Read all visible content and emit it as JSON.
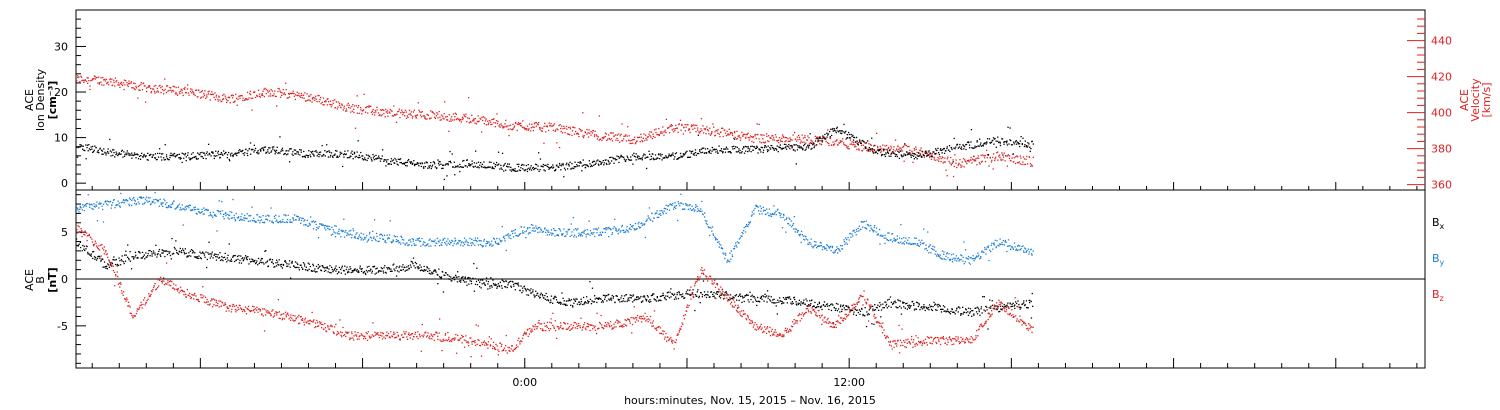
{
  "chart_data": [
    {
      "type": "scatter",
      "panel": "top",
      "ylabel_lines": [
        "ACE",
        "Ion Density",
        "[cm⁻³]"
      ],
      "y2label_lines": [
        "ACE",
        "Velocity",
        "[km/s]"
      ],
      "ylim": [
        -1.5,
        38
      ],
      "y2lim": [
        357,
        457
      ],
      "yticks": [
        0,
        10,
        20,
        30
      ],
      "y2ticks": [
        360,
        380,
        400,
        420,
        440
      ],
      "colors": {
        "density": "#000000",
        "velocity": "#e02020"
      },
      "series": [
        {
          "axis": "left",
          "x": [
            -16.6,
            -15.5,
            -14,
            -12.5,
            -11,
            -9.5,
            -8,
            -6.5,
            -5,
            -3.5,
            -2,
            -0.5,
            1,
            2.5,
            4,
            5.5,
            7,
            8.5,
            10,
            10.5,
            11.5,
            13,
            14.5,
            16,
            17.5,
            18.8
          ],
          "y": [
            8.5,
            7,
            6,
            6,
            6.5,
            7.5,
            6.5,
            6.5,
            5,
            4,
            4.5,
            3.5,
            3.5,
            4.5,
            6,
            6,
            7.5,
            7.5,
            8,
            8,
            12,
            7,
            6,
            8,
            9.5,
            8.5
          ]
        },
        {
          "axis": "right",
          "x": [
            -16.6,
            -15.5,
            -14,
            -12.5,
            -11,
            -9.5,
            -8,
            -6.5,
            -5,
            -3.5,
            -2,
            -0.5,
            1,
            2.5,
            4,
            5.5,
            7,
            8.5,
            10,
            11.5,
            13,
            14.5,
            16,
            17.5,
            18.8
          ],
          "y": [
            419,
            418,
            414,
            412,
            408,
            412,
            409,
            403,
            400,
            399,
            397,
            393,
            392,
            388,
            385,
            392,
            390,
            386,
            386,
            384,
            380,
            379,
            372,
            376,
            373
          ]
        }
      ]
    },
    {
      "type": "scatter",
      "panel": "bottom",
      "ylabel_lines": [
        "ACE",
        "B",
        "[nT]"
      ],
      "ylim": [
        -9.5,
        9.5
      ],
      "yticks": [
        -5,
        0,
        5
      ],
      "zero_line": true,
      "colors": {
        "Bx": "#000000",
        "By": "#1f7fd8",
        "Bz": "#e02020"
      },
      "series": [
        {
          "name": "Bx",
          "x": [
            -16.6,
            -15.5,
            -14.5,
            -13,
            -11.5,
            -10,
            -8.5,
            -7,
            -5.5,
            -4,
            -2.5,
            -1.5,
            -0.5,
            0.3,
            1.5,
            3,
            4.5,
            6,
            7,
            8,
            9,
            10.5,
            11.5,
            12.5,
            13.5,
            15,
            16.5,
            17.5,
            18.8
          ],
          "y": [
            4,
            1.5,
            2.5,
            3,
            2.5,
            2,
            1.5,
            1,
            1,
            1.5,
            0,
            -0.5,
            -0.5,
            -1.5,
            -2.5,
            -2,
            -2,
            -1.5,
            -1.5,
            -2,
            -2,
            -2.5,
            -3,
            -3.5,
            -2.5,
            -3,
            -3.5,
            -3,
            -2.5
          ]
        },
        {
          "name": "By",
          "x": [
            -16.6,
            -15.5,
            -14,
            -13,
            -11.5,
            -10,
            -8.5,
            -7,
            -5.5,
            -4,
            -2.5,
            -1,
            0,
            1,
            2.5,
            4,
            5.5,
            6.5,
            7.5,
            8.5,
            9.5,
            10.5,
            11.5,
            12.5,
            13.5,
            14.5,
            15.5,
            16.5,
            17.5,
            18.8
          ],
          "y": [
            7.5,
            8,
            8.5,
            8,
            7,
            6.5,
            6.5,
            5,
            4.5,
            4,
            4,
            4,
            5.5,
            5,
            5,
            5.5,
            8,
            7.5,
            2,
            7.5,
            7,
            4,
            3,
            6,
            4.5,
            4,
            2.5,
            2,
            4,
            3
          ]
        },
        {
          "name": "Bz",
          "x": [
            -16.6,
            -15.5,
            -14.5,
            -13.5,
            -12.5,
            -11,
            -9.5,
            -8,
            -6.5,
            -5,
            -3.5,
            -2,
            -0.5,
            0.3,
            1.5,
            3,
            4.5,
            5.5,
            6.5,
            7.5,
            8.5,
            9.5,
            10.5,
            11.5,
            12.5,
            13.5,
            15,
            16.5,
            17.5,
            18.8
          ],
          "y": [
            5.5,
            3,
            -4,
            0,
            -1.5,
            -3,
            -3.5,
            -4.5,
            -6,
            -6,
            -6,
            -6.5,
            -7.5,
            -5,
            -5,
            -5,
            -4,
            -7,
            1,
            -2,
            -5,
            -6,
            -3,
            -5,
            -1.5,
            -7,
            -6.5,
            -6.5,
            -2.5,
            -5.5
          ]
        }
      ],
      "legend": [
        "B",
        "B",
        "B"
      ],
      "legend_subscripts": [
        "x",
        "y",
        "z"
      ]
    }
  ],
  "xaxis": {
    "xlim": [
      -16.6,
      33.3
    ],
    "xticks": [
      0,
      12
    ],
    "tick_labels": [
      "0:00",
      "12:00"
    ],
    "xlabel": "hours:minutes, Nov. 15, 2015 – Nov. 16, 2015"
  }
}
